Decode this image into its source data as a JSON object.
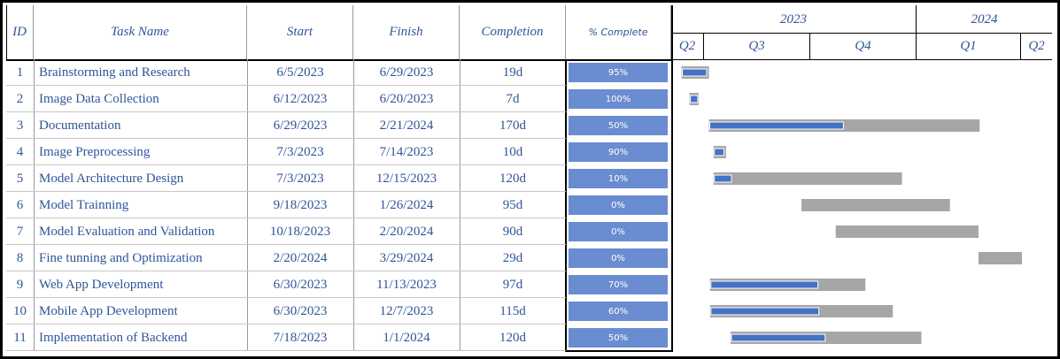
{
  "headers": {
    "id": "ID",
    "task_name": "Task Name",
    "start": "Start",
    "finish": "Finish",
    "completion": "Completion",
    "pct_complete": "% Complete",
    "years": [
      "2023",
      "2024"
    ],
    "quarters": [
      "Q2",
      "Q3",
      "Q4",
      "Q1",
      "Q2"
    ]
  },
  "tasks": [
    {
      "id": "1",
      "name": "Brainstorming and Research",
      "start": "6/5/2023",
      "finish": "6/29/2023",
      "duration": "19d",
      "pct": "95%"
    },
    {
      "id": "2",
      "name": "Image Data Collection",
      "start": "6/12/2023",
      "finish": "6/20/2023",
      "duration": "7d",
      "pct": "100%"
    },
    {
      "id": "3",
      "name": "Documentation",
      "start": "6/29/2023",
      "finish": "2/21/2024",
      "duration": "170d",
      "pct": "50%"
    },
    {
      "id": "4",
      "name": "Image Preprocessing",
      "start": "7/3/2023",
      "finish": "7/14/2023",
      "duration": "10d",
      "pct": "90%"
    },
    {
      "id": "5",
      "name": "Model Architecture Design",
      "start": "7/3/2023",
      "finish": "12/15/2023",
      "duration": "120d",
      "pct": "10%"
    },
    {
      "id": "6",
      "name": "Model Trainning",
      "start": "9/18/2023",
      "finish": "1/26/2024",
      "duration": "95d",
      "pct": "0%"
    },
    {
      "id": "7",
      "name": "Model Evaluation and Validation",
      "start": "10/18/2023",
      "finish": "2/20/2024",
      "duration": "90d",
      "pct": "0%"
    },
    {
      "id": "8",
      "name": "Fine tunning and Optimization",
      "start": "2/20/2024",
      "finish": "3/29/2024",
      "duration": "29d",
      "pct": "0%"
    },
    {
      "id": "9",
      "name": "Web App Development",
      "start": "6/30/2023",
      "finish": "11/13/2023",
      "duration": "97d",
      "pct": "70%"
    },
    {
      "id": "10",
      "name": "Mobile App Development",
      "start": "6/30/2023",
      "finish": "12/7/2023",
      "duration": "115d",
      "pct": "60%"
    },
    {
      "id": "11",
      "name": "Implementation of Backend",
      "start": "7/18/2023",
      "finish": "1/1/2024",
      "duration": "120d",
      "pct": "50%"
    }
  ],
  "chart_data": {
    "type": "bar",
    "categories": [
      "Brainstorming and Research",
      "Image Data Collection",
      "Documentation",
      "Image Preprocessing",
      "Model Architecture Design",
      "Model Trainning",
      "Model Evaluation and Validation",
      "Fine tunning and Optimization",
      "Web App Development",
      "Mobile App Development",
      "Implementation of Backend"
    ],
    "start": [
      "2023-06-05",
      "2023-06-12",
      "2023-06-29",
      "2023-07-03",
      "2023-07-03",
      "2023-09-18",
      "2023-10-18",
      "2024-02-20",
      "2023-06-30",
      "2023-06-30",
      "2023-07-18"
    ],
    "finish": [
      "2023-06-29",
      "2023-06-20",
      "2024-02-21",
      "2023-07-14",
      "2023-12-15",
      "2024-01-26",
      "2024-02-20",
      "2024-03-29",
      "2023-11-13",
      "2023-12-07",
      "2024-01-01"
    ],
    "percent_complete": [
      95,
      100,
      50,
      90,
      10,
      0,
      0,
      0,
      70,
      60,
      50
    ],
    "colors": {
      "complete": "#4472c4",
      "remaining": "#a6a6a6"
    }
  }
}
